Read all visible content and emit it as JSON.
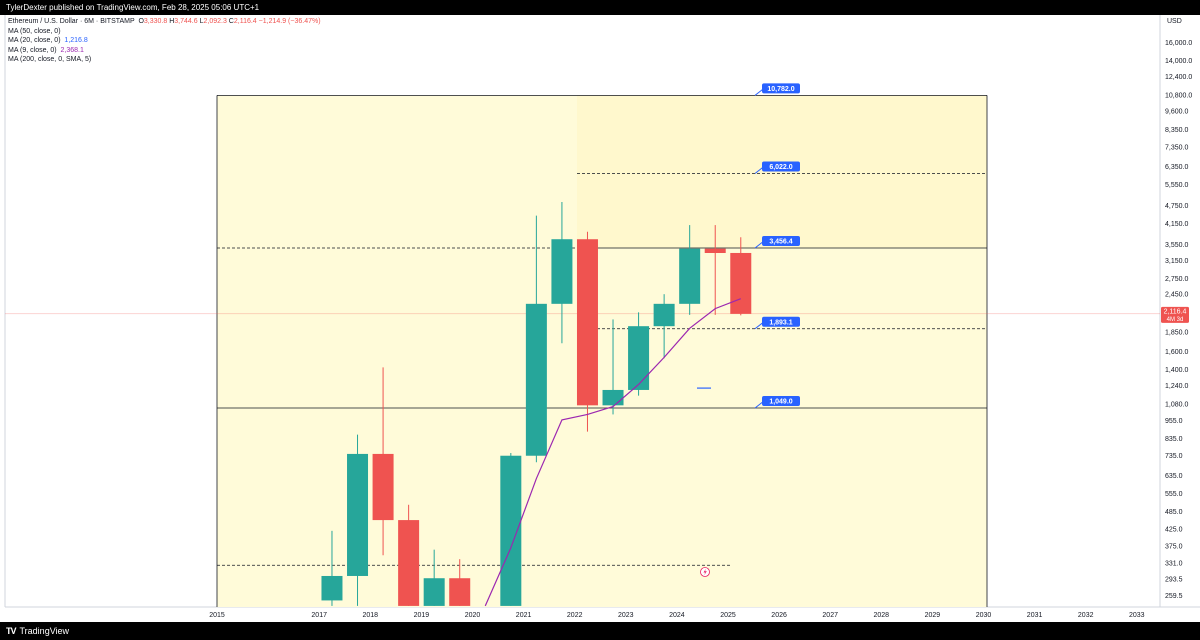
{
  "header": {
    "text": "TylerDexter published on TradingView.com, Feb 28, 2025 05:06 UTC+1"
  },
  "footer": {
    "brand_logo": "TV",
    "brand": "TradingView"
  },
  "legend": {
    "title": "Ethereum / U.S. Dollar · 6M · BITSTAMP",
    "ohlc_o_label": "O",
    "ohlc_o": "3,330.8",
    "ohlc_h_label": "H",
    "ohlc_h": "3,744.6",
    "ohlc_l_label": "L",
    "ohlc_l": "2,092.3",
    "ohlc_c_label": "C",
    "ohlc_c": "2,116.4",
    "ohlc_change": "−1,214.9 (−36.47%)",
    "ma50_label": "MA (50, close, 0)",
    "ma20_label": "MA (20, close, 0)",
    "ma20_value": "1,216.8",
    "ma9_label": "MA (9, close, 0)",
    "ma9_value": "2,368.1",
    "ma200_label": "MA (200, close, 0, SMA, 5)"
  },
  "currency": "USD",
  "colors": {
    "up": "#26a69a",
    "down": "#ef5350",
    "zone": "#fffbd9",
    "ma9": "#9c27b0",
    "ma20": "#2962ff",
    "label": "#2962ff",
    "price_tag": "#ef5350"
  },
  "price_axis": [
    "16,000.0",
    "14,000.0",
    "12,400.0",
    "10,800.0",
    "9,600.0",
    "8,350.0",
    "7,350.0",
    "6,350.0",
    "5,550.0",
    "4,750.0",
    "4,150.0",
    "3,550.0",
    "3,150.0",
    "2,750.0",
    "2,450.0",
    "1,850.0",
    "1,600.0",
    "1,400.0",
    "1,240.0",
    "1,080.0",
    "955.0",
    "835.0",
    "735.0",
    "635.0",
    "555.0",
    "485.0",
    "425.0",
    "375.0",
    "331.0",
    "293.5",
    "259.5"
  ],
  "time_axis": [
    "2015",
    "2017",
    "2018",
    "2019",
    "2020",
    "2021",
    "2022",
    "2023",
    "2024",
    "2025",
    "2026",
    "2027",
    "2028",
    "2029",
    "2030",
    "2031",
    "2032",
    "2033"
  ],
  "current_price": {
    "value": "2,116.4",
    "countdown": "4M 3d"
  },
  "level_labels": [
    "10,782.0",
    "6,022.0",
    "3,456.4",
    "1,893.1",
    "1,049.0"
  ],
  "alert_icon": "lightning-icon",
  "chart_data": {
    "type": "candlestick",
    "symbol": "Ethereum / U.S. Dollar · 6M · BITSTAMP",
    "yscale": "log",
    "ylim": [
      240,
      17500
    ],
    "candles": [
      {
        "t": "2017-H1",
        "o": 250,
        "h": 420,
        "l": 240,
        "c": 300
      },
      {
        "t": "2017-H2",
        "o": 300,
        "h": 860,
        "l": 240,
        "c": 745
      },
      {
        "t": "2018-H1",
        "o": 745,
        "h": 1420,
        "l": 350,
        "c": 455
      },
      {
        "t": "2018-H2",
        "o": 455,
        "h": 510,
        "l": 240,
        "c": 240
      },
      {
        "t": "2019-H1",
        "o": 240,
        "h": 365,
        "l": 240,
        "c": 295
      },
      {
        "t": "2019-H2",
        "o": 295,
        "h": 340,
        "l": 240,
        "c": 240
      },
      {
        "t": "2020-H2",
        "o": 240,
        "h": 750,
        "l": 240,
        "c": 735
      },
      {
        "t": "2021-H1",
        "o": 735,
        "h": 4400,
        "l": 700,
        "c": 2280
      },
      {
        "t": "2021-H2",
        "o": 2280,
        "h": 4870,
        "l": 1700,
        "c": 3690
      },
      {
        "t": "2022-H1",
        "o": 3690,
        "h": 3900,
        "l": 880,
        "c": 1070
      },
      {
        "t": "2022-H2",
        "o": 1070,
        "h": 2030,
        "l": 1000,
        "c": 1200
      },
      {
        "t": "2023-H1",
        "o": 1200,
        "h": 2140,
        "l": 1150,
        "c": 1930
      },
      {
        "t": "2023-H2",
        "o": 1930,
        "h": 2450,
        "l": 1520,
        "c": 2280
      },
      {
        "t": "2024-H1",
        "o": 2280,
        "h": 4100,
        "l": 2100,
        "c": 3440
      },
      {
        "t": "2024-H2",
        "o": 3440,
        "h": 4100,
        "l": 2100,
        "c": 3330
      },
      {
        "t": "2025-H1",
        "o": 3330.8,
        "h": 3744.6,
        "l": 2092.3,
        "c": 2116.4
      }
    ],
    "ma9": [
      [
        "2020-H1",
        240
      ],
      [
        "2020-H2",
        370
      ],
      [
        "2021-H1",
        620
      ],
      [
        "2021-H2",
        960
      ],
      [
        "2022-H1",
        1000
      ],
      [
        "2022-H2",
        1060
      ],
      [
        "2023-H1",
        1250
      ],
      [
        "2023-H2",
        1530
      ],
      [
        "2024-H1",
        1900
      ],
      [
        "2024-H2",
        2200
      ],
      [
        "2025-H1",
        2368.1
      ]
    ],
    "levels": [
      {
        "value": 10782.0,
        "style": "solid"
      },
      {
        "value": 6022.0,
        "style": "dashed"
      },
      {
        "value": 3456.4,
        "style": "solid"
      },
      {
        "value": 1893.1,
        "style": "dashed"
      },
      {
        "value": 1049.0,
        "style": "solid"
      },
      {
        "value": 3456.4,
        "style": "dashed"
      },
      {
        "value": 325,
        "style": "dashed"
      }
    ],
    "ma20_marker": 1216.8
  }
}
